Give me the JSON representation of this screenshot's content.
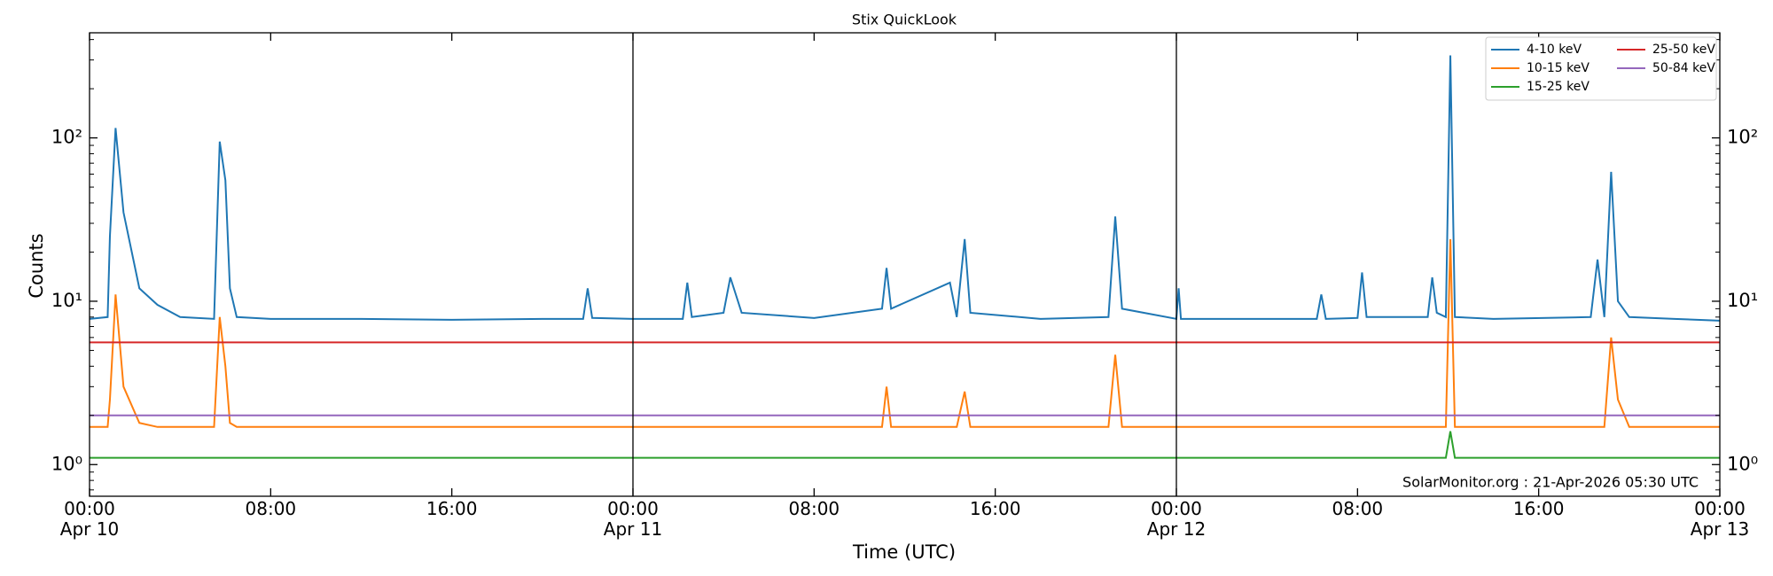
{
  "chart_data": {
    "type": "line",
    "title": "Stix QuickLook",
    "xlabel": "Time (UTC)",
    "ylabel": "Counts",
    "annotation": "SolarMonitor.org : 21-Apr-2026 05:30 UTC",
    "x": [
      0,
      0.8,
      0.9,
      1.15,
      1.5,
      2.2,
      3,
      4,
      5.5,
      5.75,
      6.0,
      6.2,
      6.5,
      8,
      12,
      16,
      20,
      21.8,
      22,
      22.2,
      24,
      26.2,
      26.4,
      26.6,
      28,
      28.3,
      28.8,
      32,
      35,
      35.2,
      35.4,
      38,
      38.3,
      38.65,
      38.9,
      42,
      45,
      45.3,
      45.6,
      48,
      48.1,
      48.2,
      52,
      54.2,
      54.4,
      54.6,
      56,
      56.2,
      56.4,
      59.1,
      59.3,
      59.5,
      59.9,
      60.1,
      60.3,
      62,
      66.3,
      66.6,
      66.9,
      67.2,
      67.5,
      68,
      70,
      72
    ],
    "series": [
      {
        "name": "4-10 keV",
        "color": "#1f77b4",
        "values": [
          7.8,
          8,
          25,
          115,
          35,
          12,
          9.5,
          8,
          7.8,
          95,
          55,
          12,
          8,
          7.8,
          7.8,
          7.7,
          7.8,
          7.8,
          12,
          7.9,
          7.8,
          7.8,
          13,
          8,
          8.5,
          14,
          8.5,
          7.9,
          9,
          16,
          9,
          13,
          8,
          24,
          8.5,
          7.8,
          8,
          33,
          9,
          7.8,
          12,
          7.8,
          7.8,
          7.8,
          11,
          7.8,
          7.9,
          15,
          8,
          8,
          14,
          8.5,
          8,
          320,
          8,
          7.8,
          8,
          18,
          8,
          62,
          10,
          8,
          7.8,
          7.6
        ]
      },
      {
        "name": "10-15 keV",
        "color": "#ff7f0e",
        "values": [
          1.7,
          1.7,
          2.5,
          11,
          3,
          1.8,
          1.7,
          1.7,
          1.7,
          8,
          4,
          1.8,
          1.7,
          1.7,
          1.7,
          1.7,
          1.7,
          1.7,
          1.7,
          1.7,
          1.7,
          1.7,
          1.7,
          1.7,
          1.7,
          1.7,
          1.7,
          1.7,
          1.7,
          3,
          1.7,
          1.7,
          1.7,
          2.8,
          1.7,
          1.7,
          1.7,
          4.7,
          1.7,
          1.7,
          1.7,
          1.7,
          1.7,
          1.7,
          1.7,
          1.7,
          1.7,
          1.7,
          1.7,
          1.7,
          1.7,
          1.7,
          1.7,
          24,
          1.7,
          1.7,
          1.7,
          1.7,
          1.7,
          6,
          2.5,
          1.7,
          1.7,
          1.7
        ]
      },
      {
        "name": "15-25 keV",
        "color": "#2ca02c",
        "values": [
          1.1,
          1.1,
          1.1,
          1.1,
          1.1,
          1.1,
          1.1,
          1.1,
          1.1,
          1.1,
          1.1,
          1.1,
          1.1,
          1.1,
          1.1,
          1.1,
          1.1,
          1.1,
          1.1,
          1.1,
          1.1,
          1.1,
          1.1,
          1.1,
          1.1,
          1.1,
          1.1,
          1.1,
          1.1,
          1.1,
          1.1,
          1.1,
          1.1,
          1.1,
          1.1,
          1.1,
          1.1,
          1.1,
          1.1,
          1.1,
          1.1,
          1.1,
          1.1,
          1.1,
          1.1,
          1.1,
          1.1,
          1.1,
          1.1,
          1.1,
          1.1,
          1.1,
          1.1,
          1.6,
          1.1,
          1.1,
          1.1,
          1.1,
          1.1,
          1.1,
          1.1,
          1.1,
          1.1,
          1.1
        ]
      },
      {
        "name": "25-50 keV",
        "color": "#d62728",
        "values": [
          5.6,
          5.6,
          5.6,
          5.6,
          5.6,
          5.6,
          5.6,
          5.6,
          5.6,
          5.6,
          5.6,
          5.6,
          5.6,
          5.6,
          5.6,
          5.6,
          5.6,
          5.6,
          5.6,
          5.6,
          5.6,
          5.6,
          5.6,
          5.6,
          5.6,
          5.6,
          5.6,
          5.6,
          5.6,
          5.6,
          5.6,
          5.6,
          5.6,
          5.6,
          5.6,
          5.6,
          5.6,
          5.6,
          5.6,
          5.6,
          5.6,
          5.6,
          5.6,
          5.6,
          5.6,
          5.6,
          5.6,
          5.6,
          5.6,
          5.6,
          5.6,
          5.6,
          5.6,
          5.6,
          5.6,
          5.6,
          5.6,
          5.6,
          5.6,
          5.6,
          5.6,
          5.6,
          5.6,
          5.6
        ]
      },
      {
        "name": "50-84 keV",
        "color": "#9467bd",
        "values": [
          2,
          2,
          2,
          2,
          2,
          2,
          2,
          2,
          2,
          2,
          2,
          2,
          2,
          2,
          2,
          2,
          2,
          2,
          2,
          2,
          2,
          2,
          2,
          2,
          2,
          2,
          2,
          2,
          2,
          2,
          2,
          2,
          2,
          2,
          2,
          2,
          2,
          2,
          2,
          2,
          2,
          2,
          2,
          2,
          2,
          2,
          2,
          2,
          2,
          2,
          2,
          2,
          2,
          2,
          2,
          2,
          2,
          2,
          2,
          2,
          2,
          2,
          2,
          2
        ]
      }
    ],
    "xlim": [
      0,
      72
    ],
    "xticks": [
      {
        "value": 0,
        "label": "00:00\nApr 10"
      },
      {
        "value": 8,
        "label": "08:00"
      },
      {
        "value": 16,
        "label": "16:00"
      },
      {
        "value": 24,
        "label": "00:00\nApr 11"
      },
      {
        "value": 32,
        "label": "08:00"
      },
      {
        "value": 40,
        "label": "16:00"
      },
      {
        "value": 48,
        "label": "00:00\nApr 12"
      },
      {
        "value": 56,
        "label": "08:00"
      },
      {
        "value": 64,
        "label": "16:00"
      },
      {
        "value": 72,
        "label": "00:00\nApr 13"
      }
    ],
    "ylim": [
      0.64,
      440
    ],
    "yscale": "log",
    "yticks": [
      {
        "value": 1,
        "label": "10⁰"
      },
      {
        "value": 10,
        "label": "10¹"
      },
      {
        "value": 100,
        "label": "10²"
      }
    ],
    "vlines": [
      24,
      48
    ],
    "legend": "upper right"
  }
}
